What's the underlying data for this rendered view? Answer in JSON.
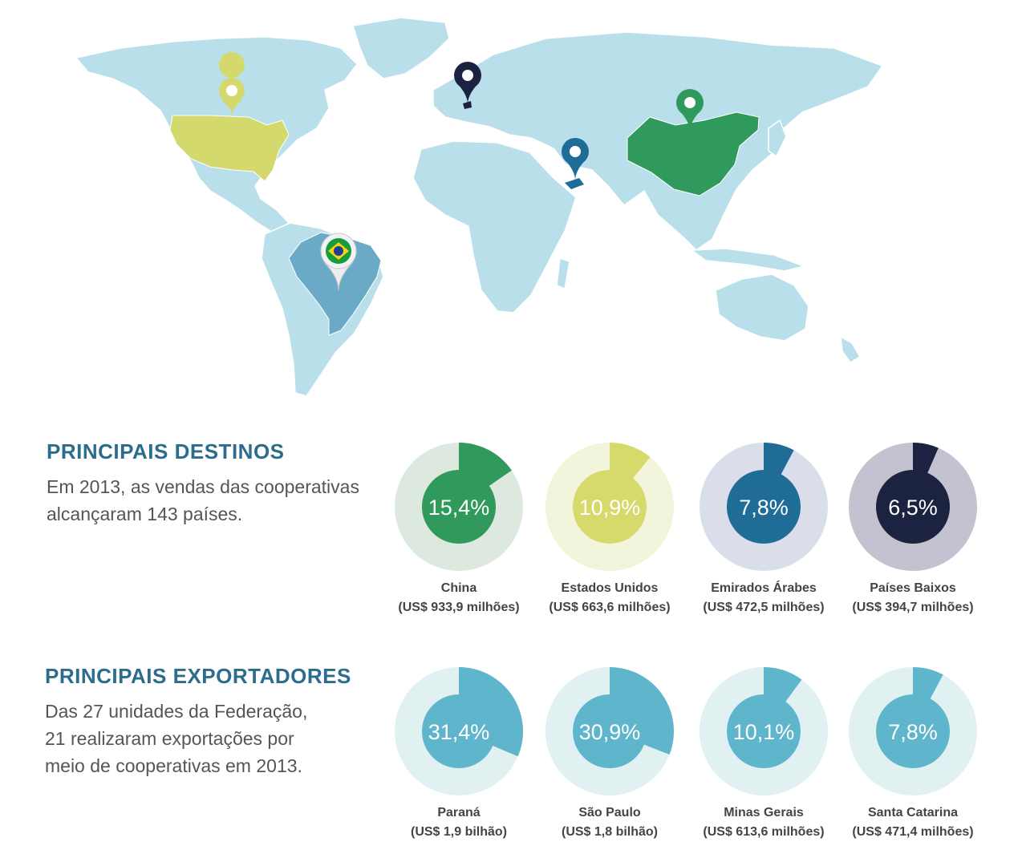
{
  "destinos": {
    "title": "PRINCIPAIS DESTINOS",
    "lines": [
      "Em 2013, as vendas das cooperativas",
      "alcançaram 143 países."
    ]
  },
  "exportadores": {
    "title": "PRINCIPAIS EXPORTADORES",
    "lines": [
      "Das 27 unidades da Federação,",
      "21 realizaram exportações por",
      "meio de cooperativas em 2013."
    ]
  },
  "colors": {
    "land": "#b9e0ea",
    "usa": "#d4d96e",
    "china": "#2f9a5c",
    "uae": "#1f6c96",
    "netherlands": "#1c2340",
    "brazil": "#6aaac6",
    "heading": "#2c6c8c"
  },
  "chart_data": [
    {
      "type": "pie",
      "title": "PRINCIPAIS DESTINOS",
      "slices": [
        {
          "name": "China",
          "percent": 15.4,
          "label": "15,4%",
          "amount": "(US$ 933,9 milhões)",
          "color": "#2f9a5c",
          "track": "#dde9df"
        },
        {
          "name": "Estados Unidos",
          "percent": 10.9,
          "label": "10,9%",
          "amount": "(US$ 663,6 milhões)",
          "color": "#d6da6a",
          "track": "#f2f5db"
        },
        {
          "name": "Emirados Árabes",
          "percent": 7.8,
          "label": "7,8%",
          "amount": "(US$ 472,5 milhões)",
          "color": "#1f6c96",
          "track": "#d9deea"
        },
        {
          "name": "Países Baixos",
          "percent": 6.5,
          "label": "6,5%",
          "amount": "(US$ 394,7 milhões)",
          "color": "#1c2340",
          "track": "#c4c2d1"
        }
      ]
    },
    {
      "type": "pie",
      "title": "PRINCIPAIS EXPORTADORES",
      "slices": [
        {
          "name": "Paraná",
          "percent": 31.4,
          "label": "31,4%",
          "amount": "(US$ 1,9 bilhão)",
          "color": "#5fb6cc",
          "track": "#e1f0f1"
        },
        {
          "name": "São Paulo",
          "percent": 30.9,
          "label": "30,9%",
          "amount": "(US$ 1,8 bilhão)",
          "color": "#5fb6cc",
          "track": "#e1f0f1"
        },
        {
          "name": "Minas Gerais",
          "percent": 10.1,
          "label": "10,1%",
          "amount": "(US$ 613,6 milhões)",
          "color": "#5fb6cc",
          "track": "#e1f0f1"
        },
        {
          "name": "Santa Catarina",
          "percent": 7.8,
          "label": "7,8%",
          "amount": "(US$ 471,4 milhões)",
          "color": "#5fb6cc",
          "track": "#e1f0f1"
        }
      ]
    }
  ]
}
